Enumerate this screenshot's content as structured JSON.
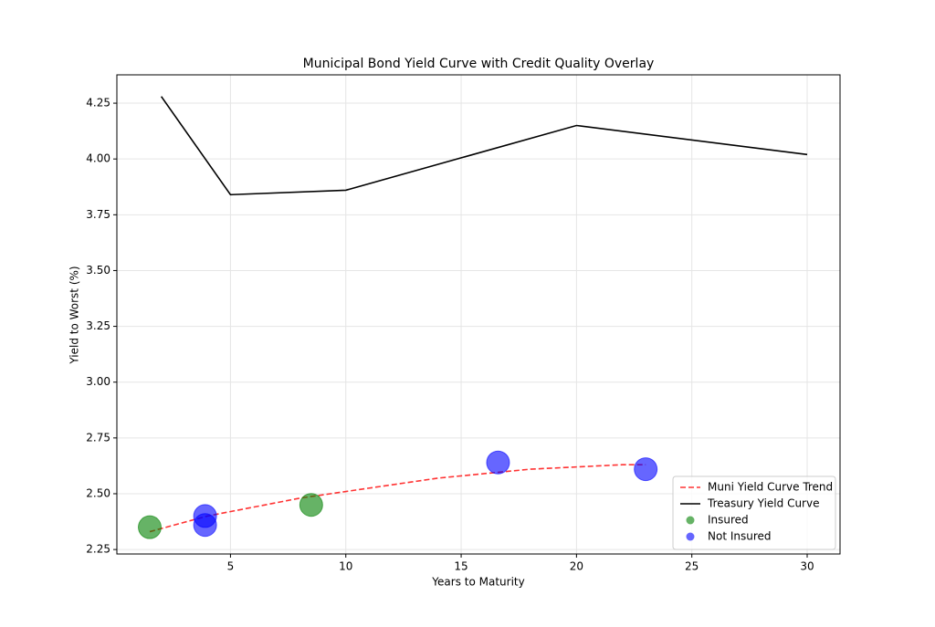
{
  "chart_data": {
    "type": "combo",
    "title": "Municipal Bond Yield Curve with Credit Quality Overlay",
    "xlabel": "Years to Maturity",
    "ylabel": "Yield to Worst (%)",
    "xlim": [
      0.075,
      31.425
    ],
    "ylim": [
      2.23,
      4.377
    ],
    "xticks": [
      5,
      10,
      15,
      20,
      25,
      30
    ],
    "yticks": [
      2.25,
      {
        "value": 2.5,
        "label": "2.50"
      },
      2.75,
      {
        "value": 3,
        "label": "3.00"
      },
      3.25,
      {
        "value": 3.5,
        "label": "3.50"
      },
      3.75,
      {
        "value": 4,
        "label": "4.00"
      },
      4.25
    ],
    "grid": true,
    "legend": "lower right",
    "series": [
      {
        "name": "Muni Yield Curve Trend",
        "type": "line",
        "dashed": true,
        "color": "#ff0000",
        "alpha": 0.8,
        "x": [
          1.5,
          4,
          6,
          8,
          10,
          12,
          14,
          16,
          18,
          20,
          22,
          23
        ],
        "values": [
          2.33,
          2.4,
          2.44,
          2.48,
          2.51,
          2.54,
          2.57,
          2.59,
          2.61,
          2.62,
          2.63,
          2.63
        ]
      },
      {
        "name": "Treasury Yield Curve",
        "type": "line",
        "dashed": false,
        "color": "#000000",
        "alpha": 1,
        "x": [
          2,
          5,
          10,
          20,
          30
        ],
        "values": [
          4.28,
          3.84,
          3.86,
          4.15,
          4.02
        ]
      },
      {
        "name": "Insured",
        "type": "scatter",
        "color": "#008000",
        "alpha": 0.6,
        "x": [
          1.5,
          8.5
        ],
        "values": [
          2.35,
          2.45
        ]
      },
      {
        "name": "Not Insured",
        "type": "scatter",
        "color": "#0000ff",
        "alpha": 0.6,
        "x": [
          3.9,
          3.9,
          16.6,
          23
        ],
        "values": [
          2.4,
          2.36,
          2.64,
          2.61
        ]
      }
    ]
  }
}
